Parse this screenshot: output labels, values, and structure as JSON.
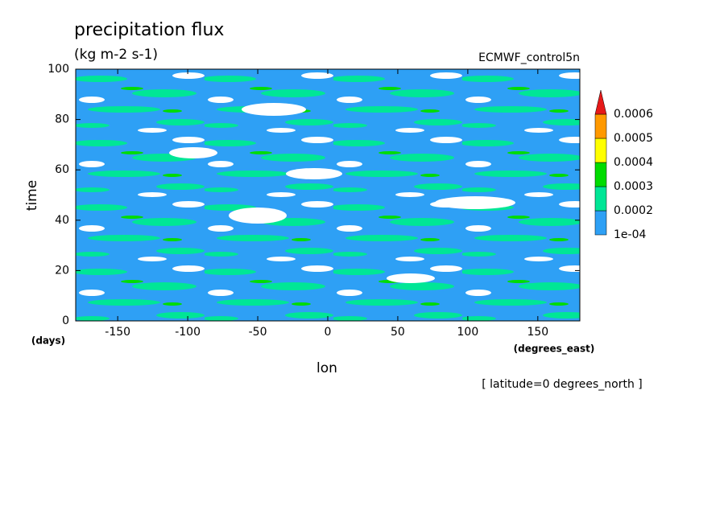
{
  "chart_data": {
    "type": "contour",
    "title": "precipitation flux",
    "subtitle": "(kg m-2 s-1)",
    "dataset": "ECMWF_control5n",
    "x_label": "lon",
    "x_unit": "(degrees_east)",
    "y_label": "time",
    "y_unit": "(days)",
    "note": "[ latitude=0 degrees_north ]",
    "xlim": [
      -180,
      180
    ],
    "xticks": [
      -150,
      -100,
      -50,
      0,
      50,
      100,
      150
    ],
    "ylim": [
      0,
      100
    ],
    "yticks": [
      0,
      20,
      40,
      60,
      80,
      100
    ],
    "colorbar": {
      "levels": [
        {
          "value": 0.0001,
          "label": "1e-04"
        },
        0.0002,
        0.0003,
        0.0004,
        0.0005,
        0.0006
      ],
      "colors": [
        "#2ea0f5",
        "#00e696",
        "#00dc00",
        "#ffff00",
        "#ff9900",
        "#e61919"
      ]
    }
  }
}
